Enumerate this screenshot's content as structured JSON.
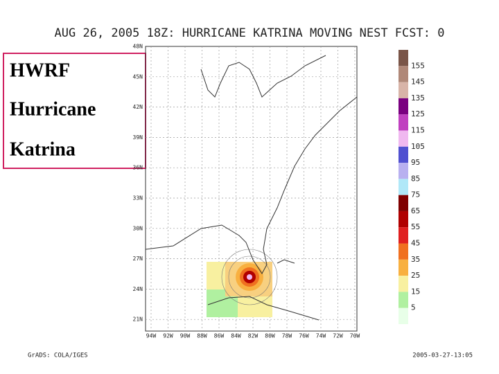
{
  "title": "AUG 26, 2005 18Z: HURRICANE KATRINA MOVING NEST FCST: 0",
  "side_box": {
    "lines": [
      "HWRF",
      "Hurricane",
      "Katrina"
    ]
  },
  "map": {
    "lat_labels": [
      "48N",
      "45N",
      "42N",
      "39N",
      "36N",
      "33N",
      "30N",
      "27N",
      "24N",
      "21N"
    ],
    "lon_labels": [
      "94W",
      "92W",
      "90W",
      "88W",
      "86W",
      "84W",
      "82W",
      "80W",
      "78W",
      "76W",
      "74W",
      "72W",
      "70W"
    ]
  },
  "colorbar": {
    "labels": [
      155,
      145,
      135,
      125,
      115,
      105,
      95,
      85,
      75,
      65,
      55,
      45,
      35,
      25,
      15,
      5
    ],
    "colors": [
      "#7a5548",
      "#b08878",
      "#d8b4a8",
      "#7a0080",
      "#c040c0",
      "#f0b8f0",
      "#5050d0",
      "#b8b0f0",
      "#b0e8f8",
      "#800000",
      "#b00000",
      "#e02020",
      "#f07020",
      "#f8b040",
      "#f8f0a0",
      "#b0f0a0",
      "#e8ffe8"
    ]
  },
  "footer": {
    "left": "GrADS: COLA/IGES",
    "right": "2005-03-27-13:05"
  }
}
